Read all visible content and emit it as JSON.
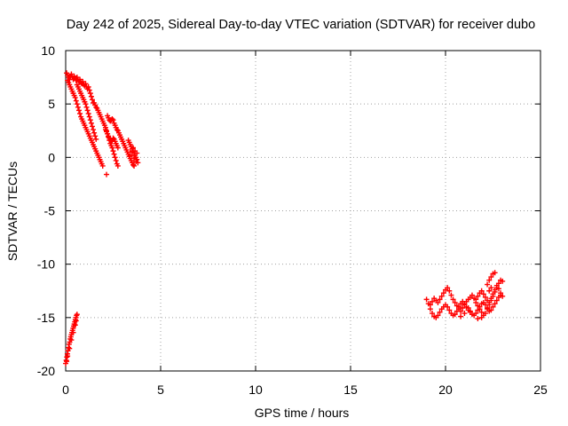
{
  "chart_data": {
    "type": "scatter",
    "title": "Day 242 of 2025, Sidereal Day-to-day VTEC variation (SDTVAR) for receiver dubo",
    "xlabel": "GPS time / hours",
    "ylabel": "SDTVAR / TECUs",
    "xlim": [
      0,
      25
    ],
    "ylim": [
      -20,
      10
    ],
    "grid": true,
    "x_ticks": [
      0,
      5,
      10,
      15,
      20,
      25
    ],
    "y_ticks": [
      -20,
      -15,
      -10,
      -5,
      0,
      5,
      10
    ],
    "marker": "+",
    "series": [
      {
        "name": "SDTVAR",
        "color": "#ff0000",
        "points": [
          [
            0.05,
            7.9
          ],
          [
            0.1,
            7.7
          ],
          [
            0.15,
            7.5
          ],
          [
            0.2,
            7.3
          ],
          [
            0.25,
            7.6
          ],
          [
            0.3,
            7.8
          ],
          [
            0.35,
            7.5
          ],
          [
            0.4,
            7.3
          ],
          [
            0.45,
            7.6
          ],
          [
            0.5,
            7.4
          ],
          [
            0.55,
            7.2
          ],
          [
            0.6,
            7.5
          ],
          [
            0.65,
            7.3
          ],
          [
            0.7,
            7.1
          ],
          [
            0.75,
            7.3
          ],
          [
            0.8,
            7.0
          ],
          [
            0.85,
            6.9
          ],
          [
            0.9,
            7.1
          ],
          [
            0.95,
            6.8
          ],
          [
            1.0,
            6.7
          ],
          [
            1.05,
            6.9
          ],
          [
            1.1,
            6.6
          ],
          [
            1.15,
            6.4
          ],
          [
            1.2,
            6.6
          ],
          [
            1.25,
            6.3
          ],
          [
            1.3,
            6.0
          ],
          [
            1.35,
            5.7
          ],
          [
            1.4,
            5.4
          ],
          [
            1.45,
            5.1
          ],
          [
            0.1,
            7.2
          ],
          [
            0.15,
            7.0
          ],
          [
            0.2,
            6.8
          ],
          [
            0.25,
            6.6
          ],
          [
            0.3,
            6.4
          ],
          [
            0.35,
            6.2
          ],
          [
            0.4,
            6.0
          ],
          [
            0.45,
            5.8
          ],
          [
            0.5,
            5.6
          ],
          [
            0.55,
            5.3
          ],
          [
            0.6,
            5.0
          ],
          [
            0.65,
            4.7
          ],
          [
            0.7,
            4.4
          ],
          [
            0.75,
            4.1
          ],
          [
            0.8,
            3.8
          ],
          [
            0.85,
            3.6
          ],
          [
            0.9,
            3.4
          ],
          [
            0.95,
            3.2
          ],
          [
            1.0,
            3.0
          ],
          [
            1.05,
            2.8
          ],
          [
            1.1,
            2.6
          ],
          [
            1.15,
            2.4
          ],
          [
            1.2,
            2.2
          ],
          [
            1.25,
            2.0
          ],
          [
            1.3,
            1.8
          ],
          [
            1.35,
            1.6
          ],
          [
            1.4,
            1.4
          ],
          [
            1.45,
            1.2
          ],
          [
            1.5,
            1.0
          ],
          [
            1.55,
            0.8
          ],
          [
            1.6,
            0.6
          ],
          [
            1.65,
            0.4
          ],
          [
            1.7,
            0.2
          ],
          [
            1.75,
            0.0
          ],
          [
            1.8,
            -0.2
          ],
          [
            1.85,
            -0.4
          ],
          [
            1.9,
            -0.6
          ],
          [
            1.95,
            -0.8
          ],
          [
            0.6,
            6.8
          ],
          [
            0.65,
            6.6
          ],
          [
            0.7,
            6.4
          ],
          [
            0.75,
            6.2
          ],
          [
            0.8,
            6.0
          ],
          [
            0.85,
            5.8
          ],
          [
            0.9,
            5.6
          ],
          [
            0.95,
            5.4
          ],
          [
            1.0,
            5.2
          ],
          [
            1.05,
            5.0
          ],
          [
            1.1,
            4.7
          ],
          [
            1.15,
            4.4
          ],
          [
            1.2,
            4.1
          ],
          [
            1.25,
            3.8
          ],
          [
            1.3,
            3.5
          ],
          [
            1.35,
            3.2
          ],
          [
            1.4,
            2.9
          ],
          [
            1.45,
            2.6
          ],
          [
            1.5,
            2.3
          ],
          [
            1.55,
            2.0
          ],
          [
            1.6,
            1.7
          ],
          [
            1.5,
            5.1
          ],
          [
            1.55,
            4.9
          ],
          [
            1.6,
            4.7
          ],
          [
            1.65,
            4.6
          ],
          [
            1.7,
            4.4
          ],
          [
            1.75,
            4.2
          ],
          [
            1.8,
            4.0
          ],
          [
            1.85,
            3.8
          ],
          [
            1.9,
            3.6
          ],
          [
            1.95,
            3.4
          ],
          [
            2.0,
            3.2
          ],
          [
            2.05,
            3.0
          ],
          [
            2.1,
            2.8
          ],
          [
            2.15,
            2.5
          ],
          [
            2.2,
            2.2
          ],
          [
            2.25,
            1.9
          ],
          [
            2.3,
            1.6
          ],
          [
            2.35,
            1.3
          ],
          [
            2.4,
            1.1
          ],
          [
            2.45,
            0.9
          ],
          [
            2.5,
            0.6
          ],
          [
            2.55,
            0.3
          ],
          [
            2.6,
            0.0
          ],
          [
            2.65,
            -0.3
          ],
          [
            2.7,
            -0.6
          ],
          [
            2.75,
            -0.8
          ],
          [
            2.2,
            3.9
          ],
          [
            2.25,
            3.7
          ],
          [
            2.3,
            3.5
          ],
          [
            2.35,
            3.4
          ],
          [
            2.4,
            3.5
          ],
          [
            2.45,
            3.6
          ],
          [
            2.5,
            3.5
          ],
          [
            2.55,
            3.2
          ],
          [
            2.6,
            3.0
          ],
          [
            2.65,
            2.8
          ],
          [
            2.7,
            2.6
          ],
          [
            2.75,
            2.5
          ],
          [
            2.8,
            2.3
          ],
          [
            2.85,
            2.1
          ],
          [
            2.9,
            1.9
          ],
          [
            2.95,
            1.7
          ],
          [
            3.0,
            1.5
          ],
          [
            3.05,
            1.3
          ],
          [
            3.1,
            1.1
          ],
          [
            3.15,
            0.9
          ],
          [
            3.2,
            0.7
          ],
          [
            3.25,
            0.5
          ],
          [
            3.3,
            0.3
          ],
          [
            3.35,
            0.1
          ],
          [
            3.4,
            -0.1
          ],
          [
            3.45,
            -0.3
          ],
          [
            3.5,
            -0.5
          ],
          [
            3.55,
            -0.7
          ],
          [
            3.6,
            -0.8
          ],
          [
            2.1,
            2.6
          ],
          [
            2.15,
            2.4
          ],
          [
            2.2,
            2.2
          ],
          [
            2.25,
            2.0
          ],
          [
            2.3,
            1.8
          ],
          [
            2.35,
            1.6
          ],
          [
            2.4,
            1.5
          ],
          [
            2.45,
            1.6
          ],
          [
            2.5,
            1.8
          ],
          [
            2.55,
            1.7
          ],
          [
            2.6,
            1.5
          ],
          [
            2.65,
            1.3
          ],
          [
            2.7,
            1.1
          ],
          [
            2.75,
            0.9
          ],
          [
            3.3,
            1.6
          ],
          [
            3.35,
            1.4
          ],
          [
            3.4,
            1.2
          ],
          [
            3.45,
            1.0
          ],
          [
            3.5,
            0.8
          ],
          [
            3.55,
            0.6
          ],
          [
            3.6,
            0.4
          ],
          [
            3.65,
            0.2
          ],
          [
            3.7,
            0.0
          ],
          [
            3.75,
            -0.2
          ],
          [
            3.5,
            0.2
          ],
          [
            3.6,
            -0.1
          ],
          [
            3.7,
            -0.4
          ],
          [
            3.8,
            -0.5
          ],
          [
            3.4,
            0.5
          ],
          [
            3.55,
            0.9
          ],
          [
            3.65,
            0.6
          ],
          [
            3.75,
            0.4
          ],
          [
            2.15,
            -1.6
          ],
          [
            0.0,
            -19.3
          ],
          [
            0.03,
            -19.0
          ],
          [
            0.06,
            -18.7
          ],
          [
            0.09,
            -18.4
          ],
          [
            0.12,
            -18.1
          ],
          [
            0.15,
            -17.8
          ],
          [
            0.18,
            -17.5
          ],
          [
            0.21,
            -17.3
          ],
          [
            0.24,
            -17.0
          ],
          [
            0.27,
            -16.8
          ],
          [
            0.3,
            -16.6
          ],
          [
            0.33,
            -16.4
          ],
          [
            0.36,
            -16.2
          ],
          [
            0.39,
            -16.0
          ],
          [
            0.42,
            -15.8
          ],
          [
            0.45,
            -15.6
          ],
          [
            0.48,
            -15.4
          ],
          [
            0.51,
            -15.2
          ],
          [
            0.54,
            -15.0
          ],
          [
            0.57,
            -14.8
          ],
          [
            0.6,
            -14.7
          ],
          [
            0.05,
            -19.1
          ],
          [
            0.1,
            -18.6
          ],
          [
            0.2,
            -17.9
          ],
          [
            0.3,
            -17.1
          ],
          [
            0.4,
            -16.4
          ],
          [
            0.5,
            -15.7
          ],
          [
            0.55,
            -15.3
          ],
          [
            19.0,
            -13.3
          ],
          [
            19.1,
            -13.7
          ],
          [
            19.2,
            -14.2
          ],
          [
            19.3,
            -14.6
          ],
          [
            19.4,
            -14.9
          ],
          [
            19.5,
            -15.0
          ],
          [
            19.6,
            -14.8
          ],
          [
            19.7,
            -14.5
          ],
          [
            19.8,
            -14.2
          ],
          [
            19.9,
            -14.0
          ],
          [
            20.0,
            -13.8
          ],
          [
            20.1,
            -14.0
          ],
          [
            20.2,
            -14.3
          ],
          [
            20.3,
            -14.6
          ],
          [
            20.4,
            -14.8
          ],
          [
            20.5,
            -14.7
          ],
          [
            20.6,
            -14.4
          ],
          [
            20.7,
            -14.0
          ],
          [
            20.8,
            -13.7
          ],
          [
            20.9,
            -13.5
          ],
          [
            21.0,
            -13.7
          ],
          [
            21.1,
            -14.0
          ],
          [
            21.2,
            -14.3
          ],
          [
            21.3,
            -14.5
          ],
          [
            21.4,
            -14.7
          ],
          [
            21.5,
            -14.8
          ],
          [
            21.6,
            -14.6
          ],
          [
            21.7,
            -14.3
          ],
          [
            21.8,
            -14.0
          ],
          [
            21.9,
            -13.7
          ],
          [
            22.0,
            -13.6
          ],
          [
            22.1,
            -13.8
          ],
          [
            22.2,
            -14.1
          ],
          [
            22.3,
            -14.4
          ],
          [
            19.2,
            -13.8
          ],
          [
            19.3,
            -13.5
          ],
          [
            19.4,
            -13.2
          ],
          [
            19.5,
            -13.4
          ],
          [
            19.6,
            -13.6
          ],
          [
            19.7,
            -13.3
          ],
          [
            19.8,
            -13.0
          ],
          [
            19.9,
            -12.7
          ],
          [
            20.0,
            -12.4
          ],
          [
            20.1,
            -12.2
          ],
          [
            20.2,
            -12.5
          ],
          [
            20.3,
            -12.9
          ],
          [
            20.4,
            -13.3
          ],
          [
            20.5,
            -13.6
          ],
          [
            20.6,
            -13.9
          ],
          [
            20.7,
            -14.2
          ],
          [
            20.8,
            -14.4
          ],
          [
            20.9,
            -14.1
          ],
          [
            21.0,
            -13.8
          ],
          [
            21.1,
            -13.5
          ],
          [
            21.2,
            -13.3
          ],
          [
            21.3,
            -13.1
          ],
          [
            21.4,
            -12.9
          ],
          [
            21.5,
            -13.2
          ],
          [
            21.6,
            -13.6
          ],
          [
            21.7,
            -13.9
          ],
          [
            21.8,
            -14.2
          ],
          [
            21.9,
            -14.5
          ],
          [
            22.0,
            -14.8
          ],
          [
            22.1,
            -14.6
          ],
          [
            22.2,
            -14.2
          ],
          [
            22.3,
            -13.8
          ],
          [
            22.4,
            -13.4
          ],
          [
            22.5,
            -13.0
          ],
          [
            22.6,
            -12.6
          ],
          [
            22.7,
            -12.2
          ],
          [
            22.8,
            -11.8
          ],
          [
            22.9,
            -11.5
          ],
          [
            23.0,
            -11.6
          ],
          [
            21.6,
            -13.3
          ],
          [
            21.7,
            -13.0
          ],
          [
            21.8,
            -12.7
          ],
          [
            21.9,
            -12.5
          ],
          [
            22.0,
            -12.8
          ],
          [
            22.1,
            -13.1
          ],
          [
            22.2,
            -13.4
          ],
          [
            22.3,
            -13.6
          ],
          [
            22.4,
            -13.2
          ],
          [
            22.5,
            -12.8
          ],
          [
            22.6,
            -12.4
          ],
          [
            22.7,
            -12.0
          ],
          [
            22.8,
            -12.3
          ],
          [
            22.9,
            -12.7
          ],
          [
            23.0,
            -13.0
          ],
          [
            22.4,
            -14.3
          ],
          [
            22.5,
            -14.0
          ],
          [
            22.6,
            -13.7
          ],
          [
            22.7,
            -13.4
          ],
          [
            22.8,
            -13.1
          ],
          [
            22.9,
            -12.9
          ],
          [
            22.2,
            -11.9
          ],
          [
            22.3,
            -11.5
          ],
          [
            22.4,
            -11.2
          ],
          [
            22.5,
            -10.9
          ],
          [
            22.6,
            -10.8
          ],
          [
            22.4,
            -12.2
          ],
          [
            22.3,
            -12.5
          ],
          [
            21.2,
            -14.1
          ],
          [
            21.3,
            -14.4
          ],
          [
            21.0,
            -14.6
          ],
          [
            20.8,
            -14.9
          ],
          [
            21.9,
            -15.0
          ],
          [
            21.7,
            -15.1
          ]
        ]
      }
    ]
  }
}
